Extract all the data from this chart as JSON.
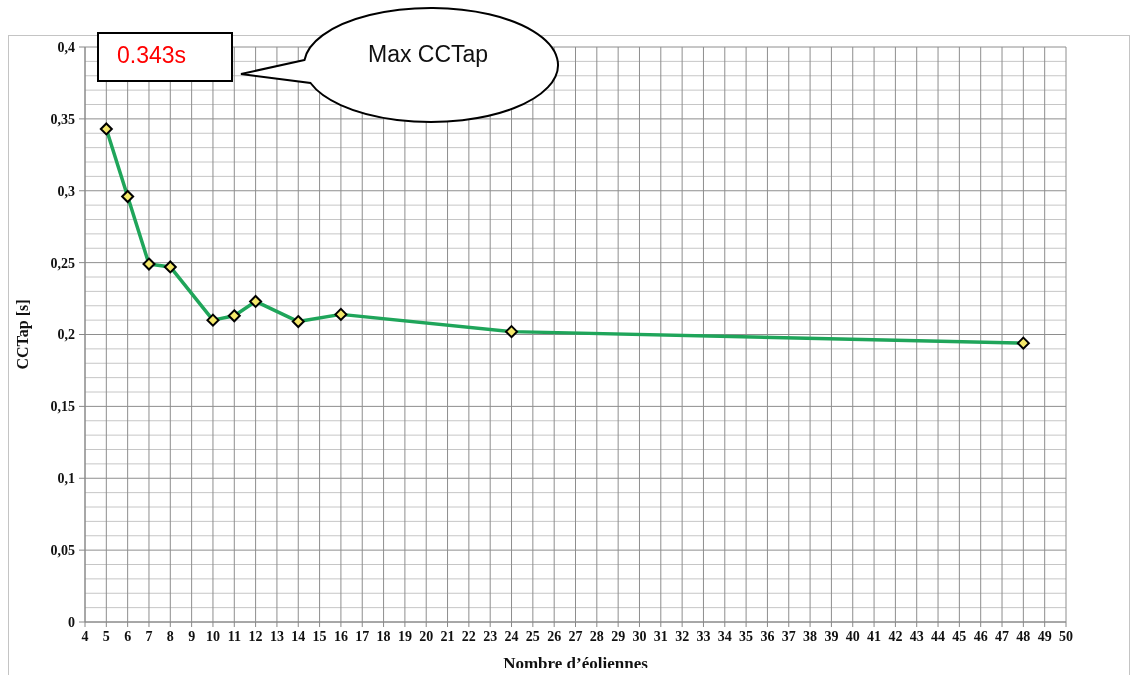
{
  "chart_data": {
    "type": "line",
    "xlabel": "Nombre d’éoliennes",
    "ylabel": "CCTap [s]",
    "annotations": [
      "0.343s",
      "Max CCTap"
    ],
    "x": [
      5,
      6,
      7,
      8,
      10,
      11,
      12,
      14,
      16,
      24,
      48
    ],
    "values": [
      0.343,
      0.296,
      0.249,
      0.247,
      0.21,
      0.213,
      0.223,
      0.209,
      0.214,
      0.202,
      0.194
    ],
    "color": "#1fa55a",
    "marker": "diamond",
    "grid": true,
    "xlim": [
      4,
      50
    ],
    "xticks": [
      4,
      5,
      6,
      7,
      8,
      9,
      10,
      11,
      12,
      13,
      14,
      15,
      16,
      17,
      18,
      19,
      20,
      21,
      22,
      23,
      24,
      25,
      26,
      27,
      28,
      29,
      30,
      31,
      32,
      33,
      34,
      35,
      36,
      37,
      38,
      39,
      40,
      41,
      42,
      43,
      44,
      45,
      46,
      47,
      48,
      49,
      50
    ],
    "ylim": [
      0,
      0.4
    ],
    "yticks": [
      0,
      {
        "value": 0.01,
        "label": null
      },
      {
        "value": 0.02,
        "label": null
      },
      {
        "value": 0.03,
        "label": null
      },
      {
        "value": 0.04,
        "label": null
      },
      {
        "value": 0.05,
        "label": "0,05"
      },
      {
        "value": 0.06,
        "label": null
      },
      {
        "value": 0.07,
        "label": null
      },
      {
        "value": 0.08,
        "label": null
      },
      {
        "value": 0.09,
        "label": null
      },
      {
        "value": 0.1,
        "label": "0,1"
      },
      {
        "value": 0.11,
        "label": null
      },
      {
        "value": 0.12,
        "label": null
      },
      {
        "value": 0.13,
        "label": null
      },
      {
        "value": 0.14,
        "label": null
      },
      {
        "value": 0.15,
        "label": "0,15"
      },
      {
        "value": 0.16,
        "label": null
      },
      {
        "value": 0.17,
        "label": null
      },
      {
        "value": 0.18,
        "label": null
      },
      {
        "value": 0.19,
        "label": null
      },
      {
        "value": 0.2,
        "label": "0,2"
      },
      {
        "value": 0.21,
        "label": null
      },
      {
        "value": 0.22,
        "label": null
      },
      {
        "value": 0.23,
        "label": null
      },
      {
        "value": 0.24,
        "label": null
      },
      {
        "value": 0.25,
        "label": "0,25"
      },
      {
        "value": 0.26,
        "label": null
      },
      {
        "value": 0.27,
        "label": null
      },
      {
        "value": 0.28,
        "label": null
      },
      {
        "value": 0.29,
        "label": null
      },
      {
        "value": 0.3,
        "label": "0,3"
      },
      {
        "value": 0.31,
        "label": null
      },
      {
        "value": 0.32,
        "label": null
      },
      {
        "value": 0.33,
        "label": null
      },
      {
        "value": 0.34,
        "label": null
      },
      {
        "value": 0.35,
        "label": "0,35"
      },
      {
        "value": 0.36,
        "label": null
      },
      {
        "value": 0.37,
        "label": null
      },
      {
        "value": 0.38,
        "label": null
      },
      {
        "value": 0.39,
        "label": null
      },
      {
        "value": 0.4,
        "label": "0,4"
      }
    ]
  }
}
